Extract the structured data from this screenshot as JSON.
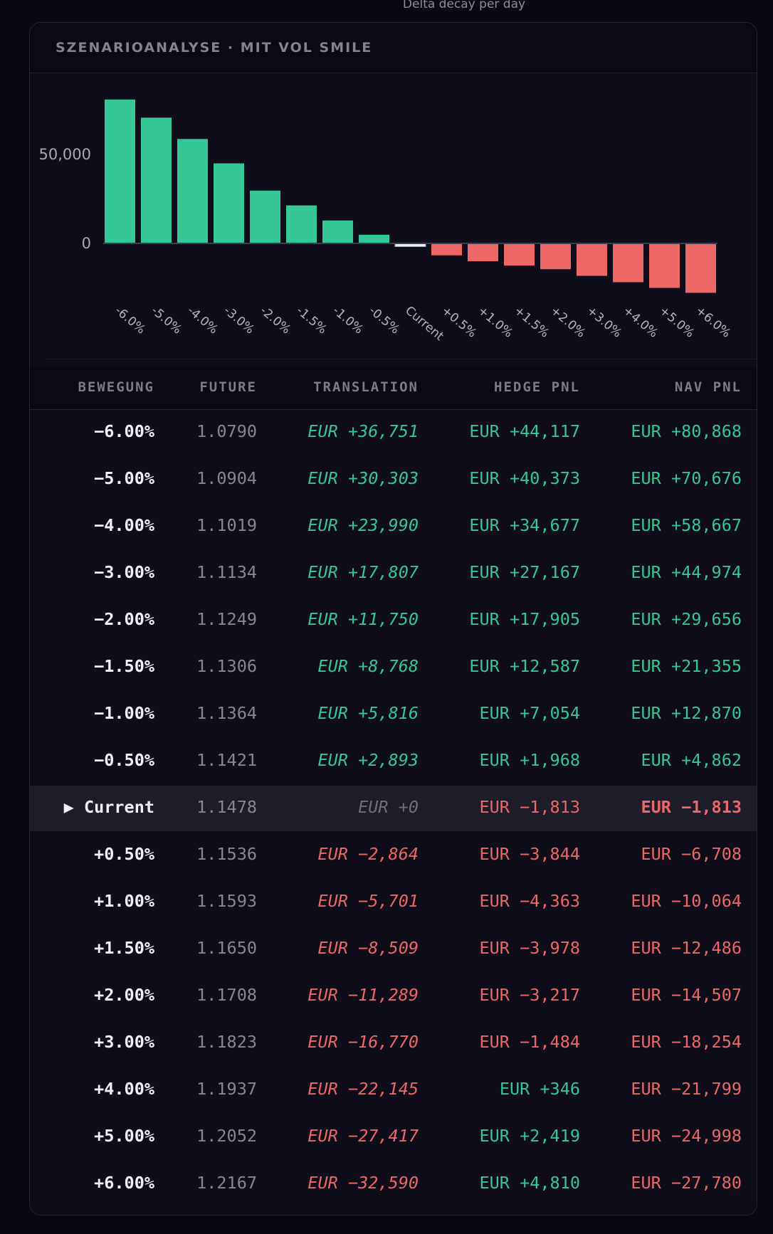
{
  "top_caption": "Delta decay per day",
  "card_title": "SZENARIOANALYSE · MIT VOL SMILE",
  "colors": {
    "positive": "#35c795",
    "negative": "#ee6767",
    "current": "#f2eef6"
  },
  "chart_data": {
    "type": "bar",
    "title": "",
    "categories": [
      "-6.0%",
      "-5.0%",
      "-4.0%",
      "-3.0%",
      "-2.0%",
      "-1.5%",
      "-1.0%",
      "-0.5%",
      "Current",
      "+0.5%",
      "+1.0%",
      "+1.5%",
      "+2.0%",
      "+3.0%",
      "+4.0%",
      "+5.0%",
      "+6.0%"
    ],
    "values": [
      80868,
      70676,
      58667,
      44974,
      29656,
      21355,
      12870,
      4862,
      -1813,
      -6708,
      -10064,
      -12486,
      -14507,
      -18254,
      -21799,
      -24998,
      -27780
    ],
    "y_ticks": [
      {
        "value": 0,
        "label": "0"
      },
      {
        "value": 50000,
        "label": "50,000"
      }
    ],
    "xlabel": "",
    "ylabel": "",
    "grid": false
  },
  "table": {
    "headers": [
      "BEWEGUNG",
      "FUTURE",
      "TRANSLATION",
      "HEDGE PNL",
      "NAV PNL"
    ],
    "current_marker": "▶",
    "rows": [
      {
        "move": "−6.00%",
        "future": "1.0790",
        "translation": "EUR +36,751",
        "hedge": "EUR +44,117",
        "nav": "EUR +80,868"
      },
      {
        "move": "−5.00%",
        "future": "1.0904",
        "translation": "EUR +30,303",
        "hedge": "EUR +40,373",
        "nav": "EUR +70,676"
      },
      {
        "move": "−4.00%",
        "future": "1.1019",
        "translation": "EUR +23,990",
        "hedge": "EUR +34,677",
        "nav": "EUR +58,667"
      },
      {
        "move": "−3.00%",
        "future": "1.1134",
        "translation": "EUR +17,807",
        "hedge": "EUR +27,167",
        "nav": "EUR +44,974"
      },
      {
        "move": "−2.00%",
        "future": "1.1249",
        "translation": "EUR +11,750",
        "hedge": "EUR +17,905",
        "nav": "EUR +29,656"
      },
      {
        "move": "−1.50%",
        "future": "1.1306",
        "translation": "EUR +8,768",
        "hedge": "EUR +12,587",
        "nav": "EUR +21,355"
      },
      {
        "move": "−1.00%",
        "future": "1.1364",
        "translation": "EUR +5,816",
        "hedge": "EUR +7,054",
        "nav": "EUR +12,870"
      },
      {
        "move": "−0.50%",
        "future": "1.1421",
        "translation": "EUR +2,893",
        "hedge": "EUR +1,968",
        "nav": "EUR +4,862"
      },
      {
        "move": "Current",
        "future": "1.1478",
        "translation": "EUR +0",
        "hedge": "EUR −1,813",
        "nav": "EUR −1,813",
        "current": true
      },
      {
        "move": "+0.50%",
        "future": "1.1536",
        "translation": "EUR −2,864",
        "hedge": "EUR −3,844",
        "nav": "EUR −6,708"
      },
      {
        "move": "+1.00%",
        "future": "1.1593",
        "translation": "EUR −5,701",
        "hedge": "EUR −4,363",
        "nav": "EUR −10,064"
      },
      {
        "move": "+1.50%",
        "future": "1.1650",
        "translation": "EUR −8,509",
        "hedge": "EUR −3,978",
        "nav": "EUR −12,486"
      },
      {
        "move": "+2.00%",
        "future": "1.1708",
        "translation": "EUR −11,289",
        "hedge": "EUR −3,217",
        "nav": "EUR −14,507"
      },
      {
        "move": "+3.00%",
        "future": "1.1823",
        "translation": "EUR −16,770",
        "hedge": "EUR −1,484",
        "nav": "EUR −18,254"
      },
      {
        "move": "+4.00%",
        "future": "1.1937",
        "translation": "EUR −22,145",
        "hedge": "EUR +346",
        "nav": "EUR −21,799"
      },
      {
        "move": "+5.00%",
        "future": "1.2052",
        "translation": "EUR −27,417",
        "hedge": "EUR +2,419",
        "nav": "EUR −24,998"
      },
      {
        "move": "+6.00%",
        "future": "1.2167",
        "translation": "EUR −32,590",
        "hedge": "EUR +4,810",
        "nav": "EUR −27,780"
      }
    ]
  }
}
